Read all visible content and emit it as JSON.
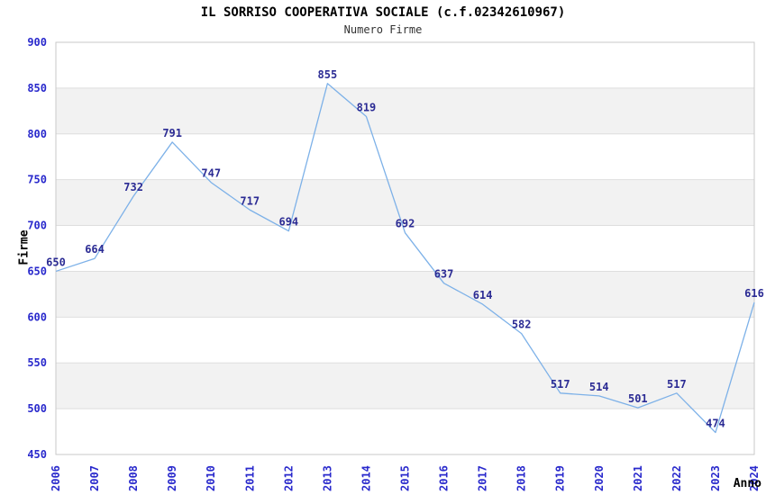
{
  "chart_data": {
    "type": "line",
    "title": "IL SORRISO COOPERATIVA SOCIALE (c.f.02342610967)",
    "subtitle": "Numero Firme",
    "xlabel": "Anno",
    "ylabel": "Firme",
    "x": [
      "2006",
      "2007",
      "2008",
      "2009",
      "2010",
      "2011",
      "2012",
      "2013",
      "2014",
      "2015",
      "2016",
      "2017",
      "2018",
      "2019",
      "2020",
      "2021",
      "2022",
      "2023",
      "2024"
    ],
    "values": [
      650,
      664,
      732,
      791,
      747,
      717,
      694,
      855,
      819,
      692,
      637,
      614,
      582,
      517,
      514,
      501,
      517,
      474,
      616
    ],
    "ylim": [
      450,
      900
    ],
    "yticks": [
      450,
      500,
      550,
      600,
      650,
      700,
      750,
      800,
      850,
      900
    ],
    "point_labels": true,
    "legend": "none",
    "grid": "horizontal-50-step with alternating shaded bands",
    "colors": {
      "line": "#7db1e8",
      "point_label": "#2b2b94",
      "tick_label": "#2929cc",
      "band": "#f2f2f2",
      "grid": "#dedede",
      "border": "#c9c9c9",
      "title": "#000000",
      "subtitle": "#333333",
      "axis_label": "#000000"
    }
  }
}
